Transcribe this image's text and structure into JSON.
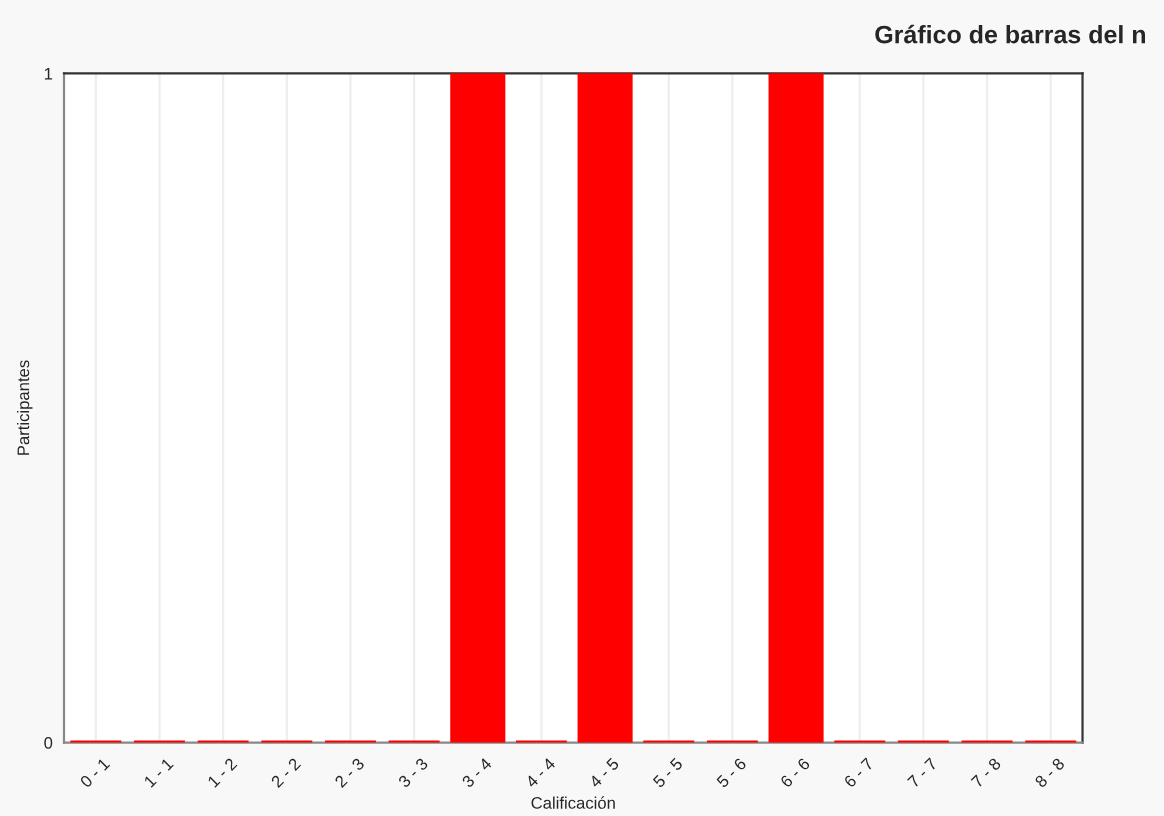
{
  "chart_data": {
    "type": "bar",
    "title": "Gráfico de barras del n",
    "xlabel": "Calificación",
    "ylabel": "Participantes",
    "categories": [
      "0 - 1",
      "1 - 1",
      "1 - 2",
      "2 - 2",
      "2 - 3",
      "3 - 3",
      "3 - 4",
      "4 - 4",
      "4 - 5",
      "5 - 5",
      "5 - 6",
      "6 - 6",
      "6 - 7",
      "7 - 7",
      "7 - 8",
      "8 - 8"
    ],
    "values": [
      0,
      0,
      0,
      0,
      0,
      0,
      1,
      0,
      1,
      0,
      0,
      1,
      0,
      0,
      0,
      0
    ],
    "color": "#ff0000",
    "ylim": [
      0,
      1
    ],
    "yticks": [
      0,
      1
    ],
    "grid": "x",
    "legend": false
  }
}
